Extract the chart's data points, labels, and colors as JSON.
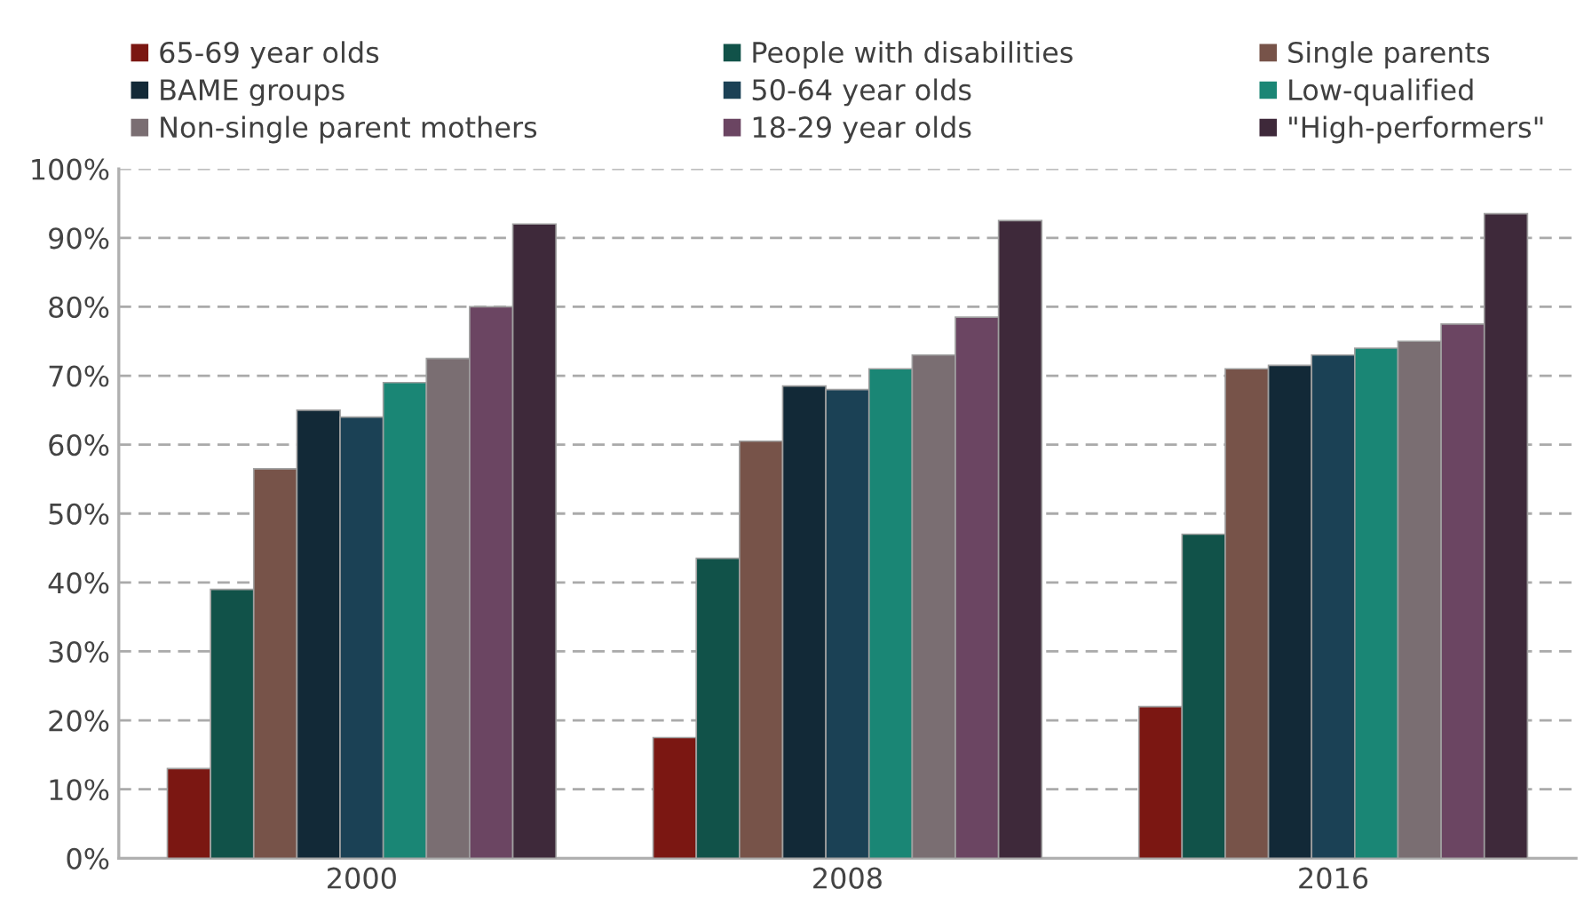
{
  "chart_data": {
    "type": "bar",
    "categories": [
      "2000",
      "2008",
      "2016"
    ],
    "series": [
      {
        "name": "65-69 year olds",
        "color": "#7b1712",
        "values": [
          13,
          17.5,
          22
        ]
      },
      {
        "name": "People with disabilities",
        "color": "#115249",
        "values": [
          39,
          43.5,
          47
        ]
      },
      {
        "name": "Single parents",
        "color": "#775349",
        "values": [
          56.5,
          60.5,
          71
        ]
      },
      {
        "name": "BAME groups",
        "color": "#122937",
        "values": [
          65,
          68.5,
          71.5
        ]
      },
      {
        "name": "50-64 year olds",
        "color": "#1b4155",
        "values": [
          64,
          68,
          73
        ]
      },
      {
        "name": "Low-qualified",
        "color": "#1a8675",
        "values": [
          69,
          71,
          74
        ]
      },
      {
        "name": "Non-single parent mothers",
        "color": "#7a6e72",
        "values": [
          72.5,
          73,
          75
        ]
      },
      {
        "name": "18-29 year olds",
        "color": "#6b4562",
        "values": [
          80,
          78.5,
          77.5
        ]
      },
      {
        "name": "\"High-performers\"",
        "color": "#3e293a",
        "values": [
          92,
          92.5,
          93.5
        ]
      }
    ],
    "ylim": [
      0,
      100
    ],
    "yticks": [
      {
        "value": 0,
        "label": "0%"
      },
      {
        "value": 10,
        "label": "10%"
      },
      {
        "value": 20,
        "label": "20%"
      },
      {
        "value": 30,
        "label": "30%"
      },
      {
        "value": 40,
        "label": "40%"
      },
      {
        "value": 50,
        "label": "50%"
      },
      {
        "value": 60,
        "label": "60%"
      },
      {
        "value": 70,
        "label": "70%"
      },
      {
        "value": 80,
        "label": "80%"
      },
      {
        "value": 90,
        "label": "90%"
      },
      {
        "value": 100,
        "label": "100%"
      }
    ],
    "grid": "y",
    "legend": "top"
  }
}
